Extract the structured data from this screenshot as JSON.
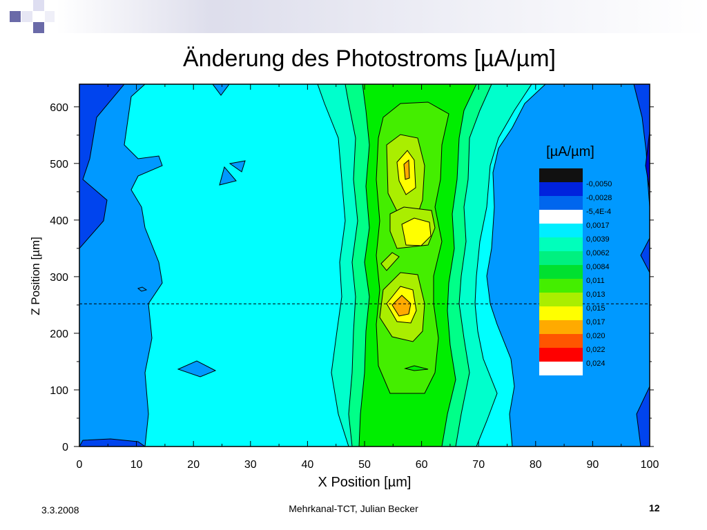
{
  "slide": {
    "title": "Änderung des Photostroms [µA/µm]",
    "footer_date": "3.3.2008",
    "footer_center": "Mehrkanal-TCT, Julian Becker",
    "page_number": "12"
  },
  "chart_data": {
    "type": "heatmap",
    "title": "Änderung des Photostroms [µA/µm]",
    "xlabel": "X Position [µm]",
    "ylabel": "Z Position [µm]",
    "xlim": [
      0,
      100
    ],
    "ylim": [
      0,
      640
    ],
    "xticks": [
      0,
      10,
      20,
      30,
      40,
      50,
      60,
      70,
      80,
      90,
      100
    ],
    "yticks": [
      0,
      100,
      200,
      300,
      400,
      500,
      600
    ],
    "grid": false,
    "legend_title": "[µA/µm]",
    "legend_placement": "right",
    "levels": [
      {
        "label": "",
        "color": "#111111"
      },
      {
        "label": "-0,0050",
        "color": "#0022dd"
      },
      {
        "label": "-0,0028",
        "color": "#0066ee"
      },
      {
        "label": "-5,4E-4",
        "color": "#ffffff"
      },
      {
        "label": "0,0017",
        "color": "#00eeff"
      },
      {
        "label": "0,0039",
        "color": "#00ffbb"
      },
      {
        "label": "0,0062",
        "color": "#00f080"
      },
      {
        "label": "0,0084",
        "color": "#00e030"
      },
      {
        "label": "0,011",
        "color": "#44ee00"
      },
      {
        "label": "0,013",
        "color": "#aaee00"
      },
      {
        "label": "0,015",
        "color": "#ffff00"
      },
      {
        "label": "0,017",
        "color": "#ffaa00"
      },
      {
        "label": "0,020",
        "color": "#ff5500"
      },
      {
        "label": "0,022",
        "color": "#ff0000"
      },
      {
        "label": "0,024",
        "color": "#ffffff"
      }
    ],
    "reference_line": {
      "z": 252,
      "style": "dashed"
    },
    "colors": {
      "dark_blue": "#0000cc",
      "blue": "#0044ee",
      "mid_blue": "#0099ff",
      "cyan": "#00ffff",
      "aqua": "#00ffcc",
      "light_green": "#00ff88",
      "green": "#00ee00",
      "lime": "#88ff00",
      "yellow_green": "#ccff00",
      "yellow": "#ffff00",
      "orange": "#ff9900"
    }
  }
}
